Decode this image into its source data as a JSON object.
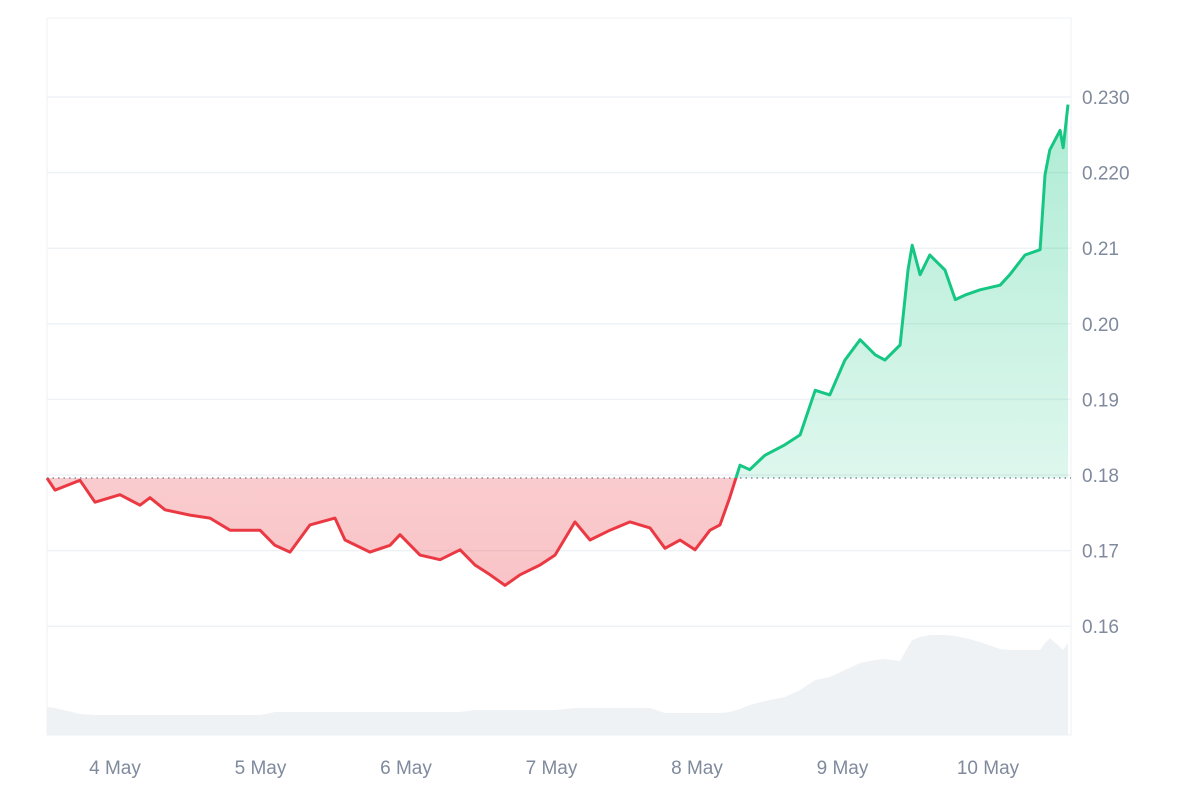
{
  "chart_data": {
    "type": "line",
    "title": "",
    "xlabel": "",
    "ylabel": "",
    "ylim": [
      0.145,
      0.24
    ],
    "y_ticks": [
      "0.230",
      "0.220",
      "0.21",
      "0.20",
      "0.19",
      "0.18",
      "0.17",
      "0.16"
    ],
    "y_tick_values": [
      0.23,
      0.22,
      0.21,
      0.2,
      0.19,
      0.18,
      0.17,
      0.16
    ],
    "x_ticks": [
      "4 May",
      "5 May",
      "6 May",
      "7 May",
      "8 May",
      "9 May",
      "10 May"
    ],
    "grid": true,
    "baseline": 0.1796,
    "colors": {
      "up": "#16c784",
      "down": "#ea3943",
      "volume": "#eff2f5",
      "grid": "#eff2f5",
      "baseline": "#808a9d"
    },
    "series": [
      {
        "values": [
          [
            "3 May 12:47",
            0.1796,
            28
          ],
          [
            "3 May 14:06",
            0.178,
            27
          ],
          [
            "3 May 18:14",
            0.1793,
            21
          ],
          [
            "3 May 20:42",
            0.1764,
            20
          ],
          [
            "4 May 00:49",
            0.1774,
            20
          ],
          [
            "4 May 04:07",
            0.176,
            20
          ],
          [
            "4 May 05:46",
            0.177,
            20
          ],
          [
            "4 May 08:15",
            0.1754,
            20
          ],
          [
            "4 May 12:22",
            0.1747,
            20
          ],
          [
            "4 May 15:40",
            0.1743,
            20
          ],
          [
            "4 May 18:58",
            0.1727,
            20
          ],
          [
            "4 May 23:55",
            0.1727,
            20
          ],
          [
            "5 May 02:23",
            0.1707,
            23
          ],
          [
            "5 May 04:52",
            0.1698,
            23
          ],
          [
            "5 May 08:10",
            0.1734,
            23
          ],
          [
            "5 May 12:17",
            0.1743,
            23
          ],
          [
            "5 May 13:56",
            0.1714,
            23
          ],
          [
            "5 May 18:04",
            0.1698,
            23
          ],
          [
            "5 May 21:22",
            0.1707,
            23
          ],
          [
            "5 May 23:01",
            0.1721,
            23
          ],
          [
            "6 May 02:19",
            0.1694,
            23
          ],
          [
            "6 May 05:37",
            0.1688,
            23
          ],
          [
            "6 May 08:55",
            0.1701,
            23
          ],
          [
            "6 May 11:23",
            0.1681,
            25
          ],
          [
            "6 May 13:52",
            0.1668,
            25
          ],
          [
            "6 May 16:20",
            0.1654,
            25
          ],
          [
            "6 May 18:48",
            0.1668,
            25
          ],
          [
            "6 May 22:06",
            0.1681,
            25
          ],
          [
            "7 May 00:35",
            0.1694,
            25
          ],
          [
            "7 May 03:53",
            0.1738,
            27
          ],
          [
            "7 May 06:21",
            0.1714,
            27
          ],
          [
            "7 May 09:39",
            0.1727,
            27
          ],
          [
            "7 May 12:57",
            0.1738,
            27
          ],
          [
            "7 May 16:15",
            0.173,
            27
          ],
          [
            "7 May 18:43",
            0.1703,
            22
          ],
          [
            "7 May 21:12",
            0.1714,
            22
          ],
          [
            "7 May 23:40",
            0.1701,
            22
          ],
          [
            "8 May 02:09",
            0.1727,
            22
          ],
          [
            "8 May 03:48",
            0.1734,
            22
          ],
          [
            "8 May 05:24",
            0.177,
            23
          ],
          [
            "8 May 07:06",
            0.1813,
            26
          ],
          [
            "8 May 08:42",
            0.1807,
            30
          ],
          [
            "8 May 11:12",
            0.1826,
            34
          ],
          [
            "8 May 14:30",
            0.184,
            38
          ],
          [
            "8 May 17:00",
            0.1853,
            45
          ],
          [
            "8 May 19:30",
            0.1912,
            55
          ],
          [
            "8 May 21:54",
            0.1906,
            58
          ],
          [
            "9 May 00:24",
            0.1952,
            65
          ],
          [
            "9 May 02:54",
            0.1979,
            72
          ],
          [
            "9 May 05:24",
            0.1959,
            75
          ],
          [
            "9 May 07:00",
            0.1952,
            76
          ],
          [
            "9 May 09:30",
            0.1972,
            74
          ],
          [
            "9 May 10:48",
            0.2071,
            88
          ],
          [
            "9 May 11:30",
            0.2104,
            95
          ],
          [
            "9 May 12:48",
            0.2065,
            98
          ],
          [
            "9 May 14:24",
            0.2091,
            100
          ],
          [
            "9 May 16:54",
            0.2071,
            100
          ],
          [
            "9 May 18:36",
            0.2032,
            99
          ],
          [
            "9 May 20:12",
            0.2038,
            97
          ],
          [
            "9 May 22:42",
            0.2045,
            93
          ],
          [
            "10 May 02:00",
            0.2051,
            86
          ],
          [
            "10 May 03:36",
            0.2065,
            85
          ],
          [
            "10 May 06:06",
            0.2091,
            85
          ],
          [
            "10 May 08:36",
            0.2098,
            85
          ],
          [
            "10 May 09:24",
            0.2197,
            92
          ],
          [
            "10 May 10:12",
            0.223,
            97
          ],
          [
            "10 May 11:54",
            0.2256,
            88
          ],
          [
            "10 May 12:24",
            0.2233,
            85
          ],
          [
            "10 May 13:12",
            0.229,
            92
          ]
        ]
      }
    ],
    "series_fields": [
      "time",
      "price",
      "volume_relative"
    ]
  }
}
